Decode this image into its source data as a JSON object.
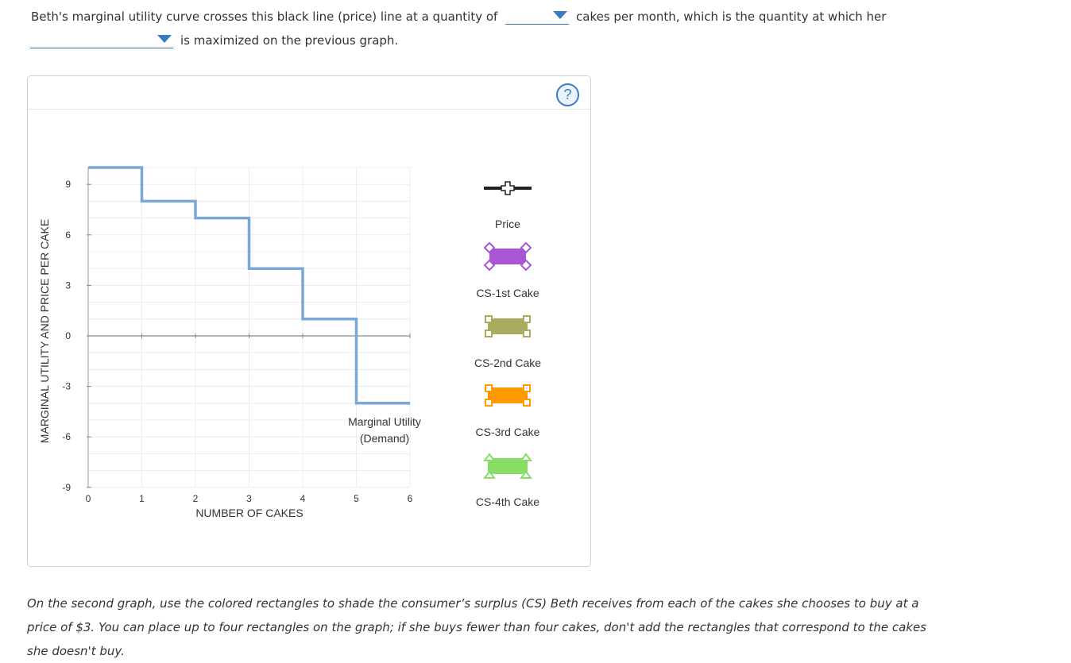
{
  "question": {
    "line1_before": "Beth's marginal utility curve crosses this black line (price) line at a quantity of",
    "line1_after": "cakes per month, which is the quantity at which her",
    "line2_after": "is maximized on the previous graph.",
    "dropdown_quantity_value": "",
    "dropdown_measure_value": ""
  },
  "help": {
    "label": "?"
  },
  "graph": {
    "ylabel": "MARGINAL UTILITY AND PRICE PER CAKE",
    "xlabel": "NUMBER OF CAKES",
    "curve_label_line1": "Marginal Utility",
    "curve_label_line2": "(Demand)"
  },
  "legend": {
    "items": [
      {
        "label": "Price",
        "color": "#222222",
        "icon": "plus-marker-line-icon"
      },
      {
        "label": "CS-1st Cake",
        "color": "#a855d6",
        "icon": "diamond-rectangle-icon"
      },
      {
        "label": "CS-2nd Cake",
        "color": "#a8ac5c",
        "icon": "square-rectangle-icon"
      },
      {
        "label": "CS-3rd Cake",
        "color": "#ff9900",
        "icon": "square-rectangle-icon"
      },
      {
        "label": "CS-4th Cake",
        "color": "#88dd66",
        "icon": "triangle-rectangle-icon"
      }
    ]
  },
  "instructions": "On the second graph, use the colored rectangles to shade the consumer’s surplus (CS) Beth receives from each of the cakes she chooses to buy at a price of $3. You can place up to four rectangles on the graph; if she buys fewer than four cakes, don't add the rectangles that correspond to the cakes she doesn't buy.",
  "chart_data": {
    "type": "line",
    "title": "",
    "xlabel": "NUMBER OF CAKES",
    "ylabel": "MARGINAL UTILITY AND PRICE PER CAKE",
    "xlim": [
      0,
      6
    ],
    "ylim": [
      -9,
      10
    ],
    "x_ticks": [
      0,
      1,
      2,
      3,
      4,
      5,
      6
    ],
    "y_ticks": [
      9,
      6,
      3,
      0,
      -3,
      -6,
      -9
    ],
    "grid": true,
    "series": [
      {
        "name": "Marginal Utility (Demand)",
        "color": "#7ba7d4",
        "step": true,
        "x": [
          0,
          1,
          2,
          3,
          4,
          5,
          6
        ],
        "y": [
          10,
          8,
          7,
          4,
          1,
          -4,
          -4
        ]
      }
    ]
  }
}
